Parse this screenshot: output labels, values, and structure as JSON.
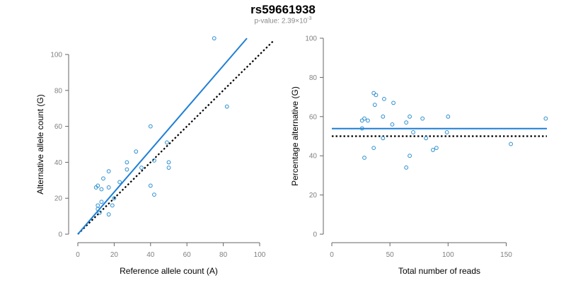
{
  "header": {
    "title": "rs59661938",
    "pvalue_label": "p-value: 2.39×10",
    "pvalue_exponent": "-3"
  },
  "colors": {
    "accent": "#1f7fd6",
    "points": "#2a8fd0",
    "axis": "#666666",
    "reference_line": "#000000"
  },
  "chart_data": [
    {
      "type": "scatter",
      "xlabel": "Reference allele count (A)",
      "ylabel": "Alternative allele count (G)",
      "xlim": [
        0,
        100
      ],
      "ylim": [
        0,
        100
      ],
      "x_ticks": [
        0,
        20,
        40,
        60,
        80,
        100
      ],
      "y_ticks": [
        0,
        20,
        40,
        60,
        80,
        100
      ],
      "grid": false,
      "points": [
        [
          75,
          109
        ],
        [
          82,
          71
        ],
        [
          40,
          60
        ],
        [
          49,
          51
        ],
        [
          32,
          46
        ],
        [
          50,
          40
        ],
        [
          42,
          41
        ],
        [
          50,
          37
        ],
        [
          27,
          40
        ],
        [
          17,
          35
        ],
        [
          27,
          36
        ],
        [
          35,
          37
        ],
        [
          40,
          27
        ],
        [
          42,
          22
        ],
        [
          23,
          29
        ],
        [
          14,
          31
        ],
        [
          11,
          27
        ],
        [
          10,
          26
        ],
        [
          17,
          26
        ],
        [
          13,
          25
        ],
        [
          20,
          20
        ],
        [
          13,
          18
        ],
        [
          11,
          16
        ],
        [
          19,
          16
        ],
        [
          11,
          14
        ],
        [
          17,
          11
        ],
        [
          12,
          12
        ]
      ],
      "fit_line": {
        "x": [
          0,
          93
        ],
        "y": [
          0,
          109
        ]
      },
      "reference_line": {
        "x": [
          0,
          108
        ],
        "y": [
          0,
          108
        ],
        "style": "dotted"
      }
    },
    {
      "type": "scatter",
      "xlabel": "Total number of reads",
      "ylabel": "Percentage alternative (G)",
      "xlim": [
        0,
        185
      ],
      "ylim": [
        0,
        100
      ],
      "x_ticks": [
        0,
        50,
        100,
        150
      ],
      "y_ticks": [
        0,
        20,
        40,
        60,
        80,
        100
      ],
      "grid": false,
      "points": [
        [
          184,
          59
        ],
        [
          154,
          46
        ],
        [
          100,
          60
        ],
        [
          99,
          52
        ],
        [
          90,
          44
        ],
        [
          87,
          43
        ],
        [
          81,
          49
        ],
        [
          78,
          59
        ],
        [
          70,
          52
        ],
        [
          67,
          60
        ],
        [
          67,
          40
        ],
        [
          64,
          57
        ],
        [
          64,
          34
        ],
        [
          53,
          67
        ],
        [
          52,
          56
        ],
        [
          45,
          69
        ],
        [
          44,
          60
        ],
        [
          44,
          49
        ],
        [
          38,
          71
        ],
        [
          36,
          72
        ],
        [
          37,
          66
        ],
        [
          36,
          44
        ],
        [
          31,
          58
        ],
        [
          28,
          59
        ],
        [
          26,
          58
        ],
        [
          26,
          54
        ],
        [
          28,
          39
        ]
      ],
      "fit_line": {
        "x": [
          0,
          185
        ],
        "y": [
          53.9,
          53.9
        ]
      },
      "reference_line": {
        "x": [
          0,
          185
        ],
        "y": [
          50,
          50
        ],
        "style": "dotted"
      }
    }
  ]
}
